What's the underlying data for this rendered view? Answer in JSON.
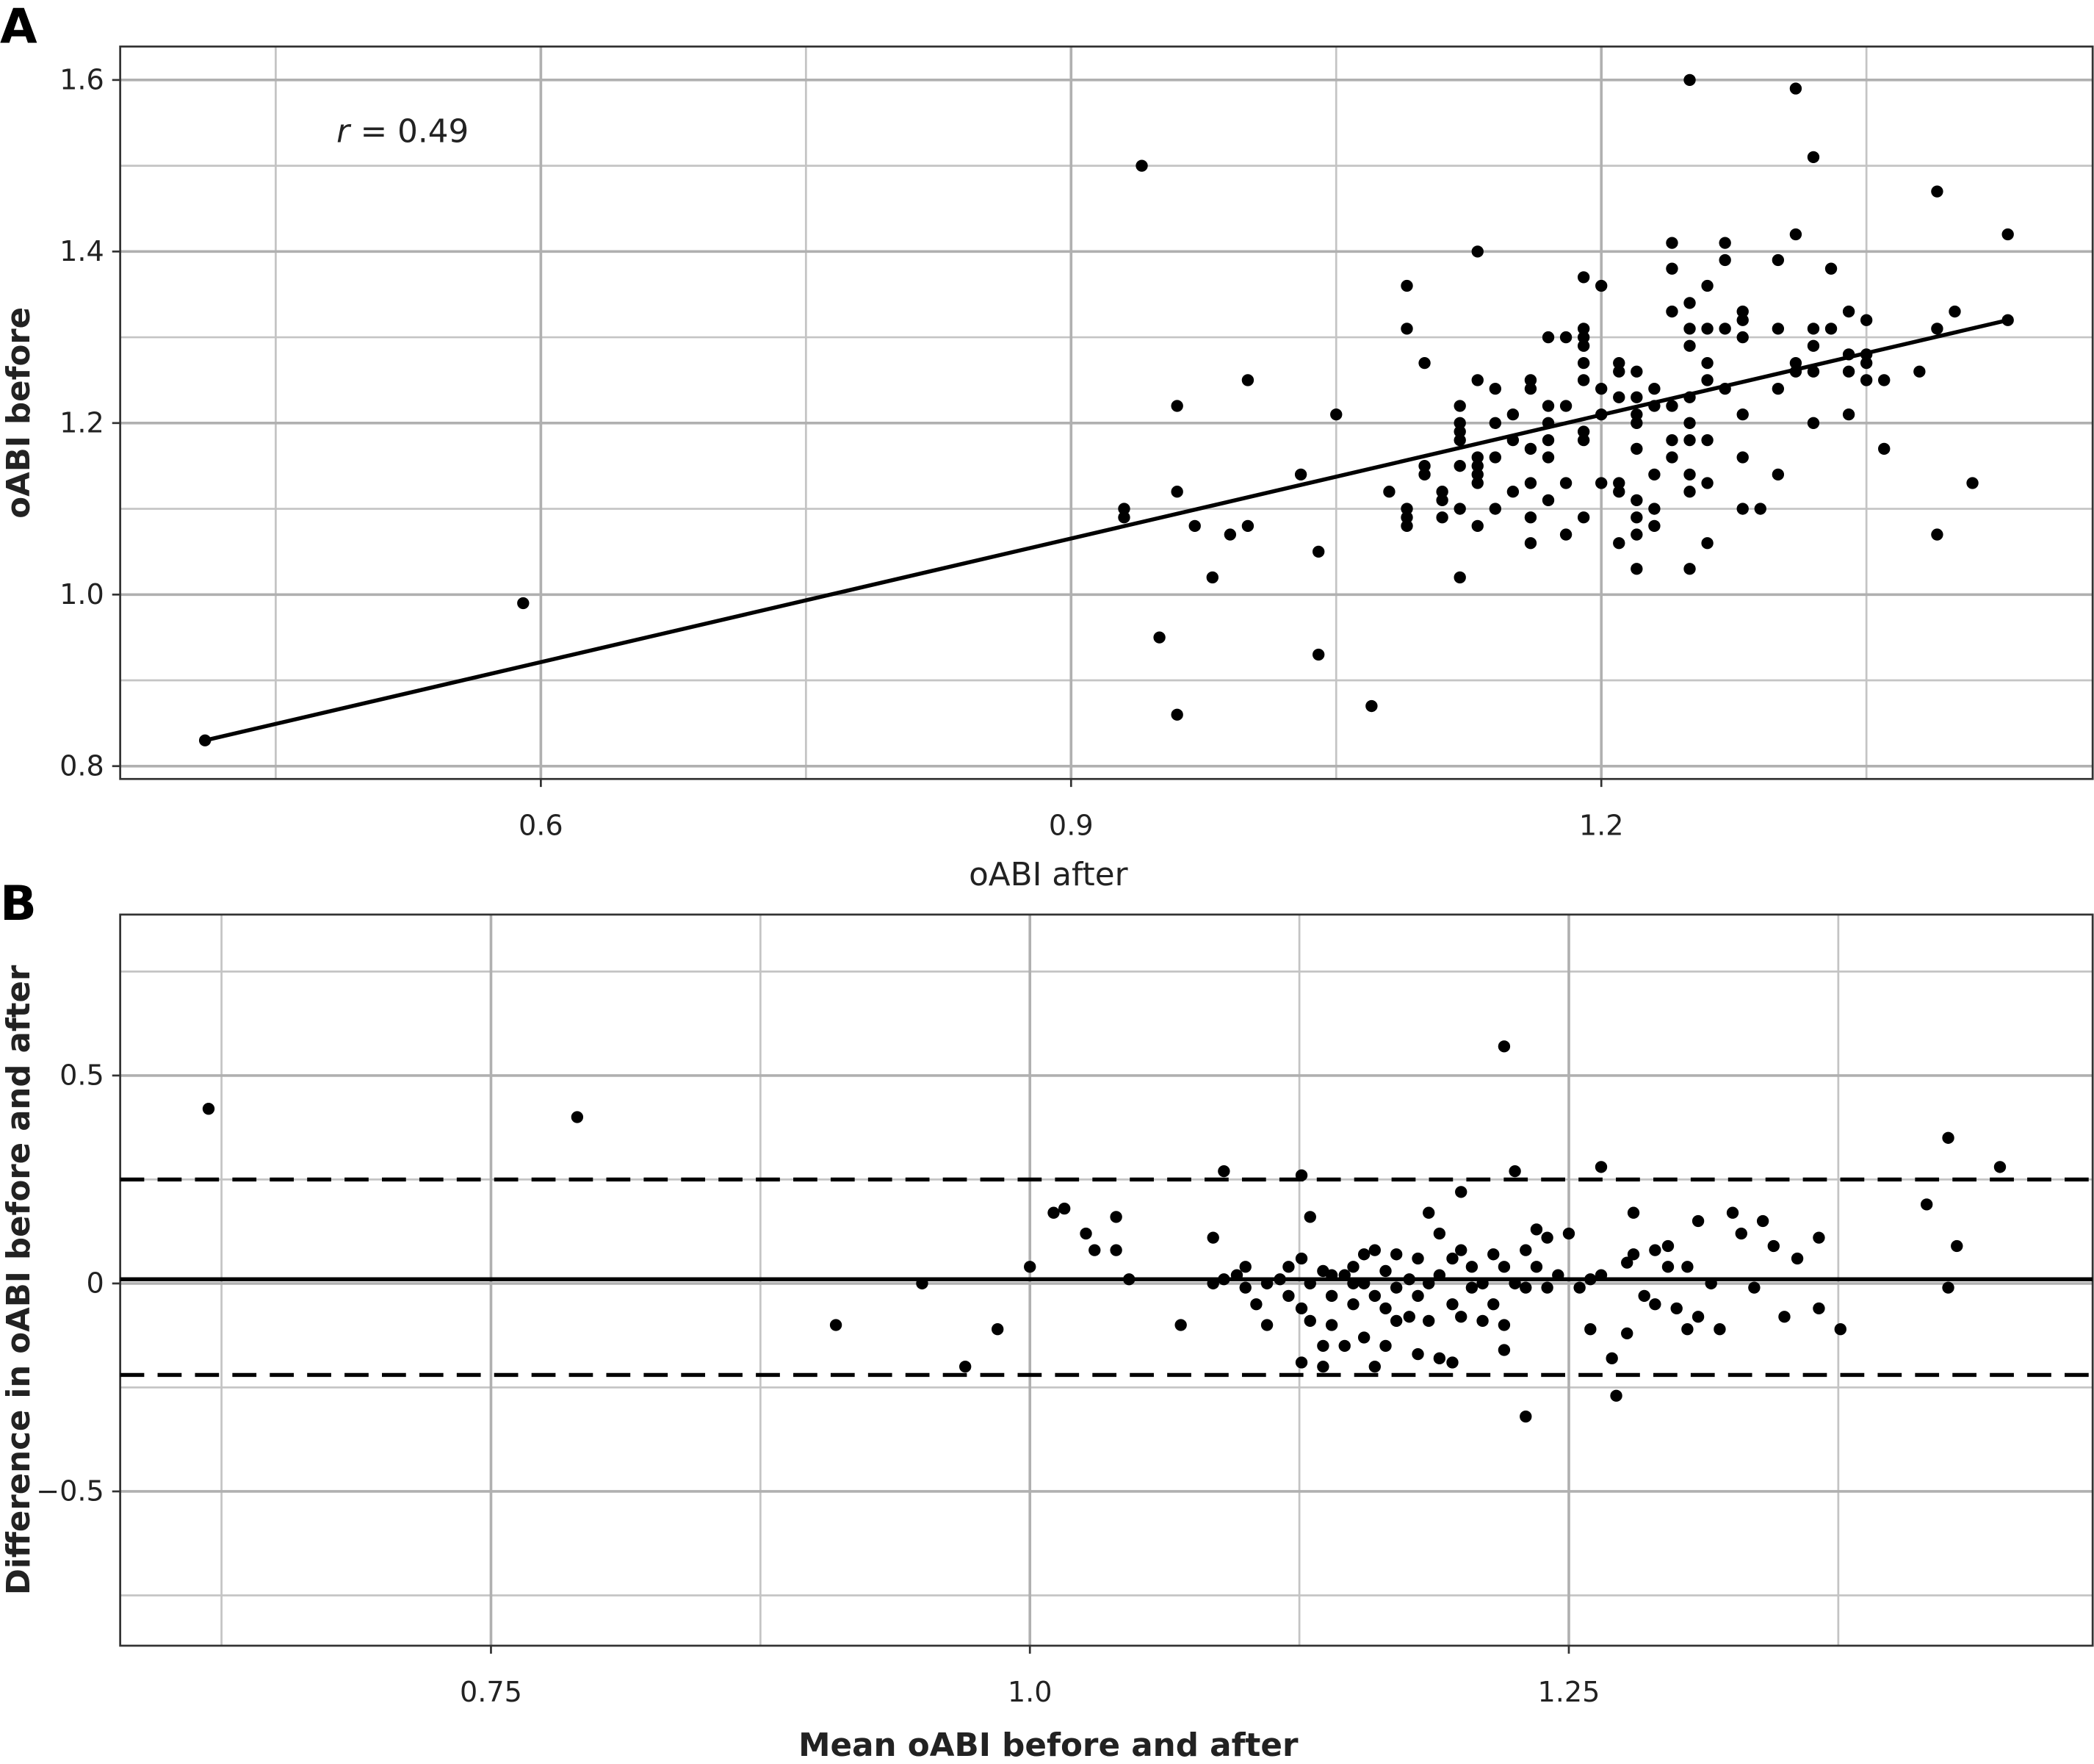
{
  "chart_data": [
    {
      "type": "scatter",
      "panel_label": "A",
      "xlabel": "oABI after",
      "ylabel": "oABI before",
      "annotation": {
        "symbol": "r",
        "text": "= 0.49"
      },
      "xlim": [
        0.362,
        1.478
      ],
      "ylim": [
        0.785,
        1.639
      ],
      "xticks": [
        0.6,
        0.9,
        1.2
      ],
      "yticks": [
        0.8,
        {
          "value": 1.0,
          "label": "1.0"
        },
        1.2,
        1.4,
        1.6
      ],
      "x_minor_grid": [
        0.45,
        0.75,
        1.05,
        1.35
      ],
      "y_minor_grid": [
        0.9,
        1.1,
        1.3,
        1.5
      ],
      "grid": true,
      "color": "#000000",
      "fit_line": {
        "x": [
          0.41,
          1.43
        ],
        "y": [
          0.83,
          1.32
        ]
      },
      "x": [
        0.41,
        0.59,
        0.94,
        0.93,
        0.93,
        0.96,
        0.96,
        0.95,
        0.96,
        0.97,
        0.98,
        0.99,
        1.0,
        1.0,
        1.03,
        1.05,
        1.04,
        1.04,
        1.07,
        1.08,
        1.09,
        1.09,
        1.09,
        1.09,
        1.09,
        1.1,
        1.1,
        1.1,
        1.11,
        1.11,
        1.11,
        1.12,
        1.12,
        1.12,
        1.12,
        1.12,
        1.12,
        1.12,
        1.13,
        1.13,
        1.13,
        1.13,
        1.13,
        1.13,
        1.13,
        1.14,
        1.14,
        1.14,
        1.14,
        1.15,
        1.15,
        1.15,
        1.16,
        1.16,
        1.16,
        1.16,
        1.16,
        1.16,
        1.17,
        1.17,
        1.17,
        1.17,
        1.17,
        1.17,
        1.18,
        1.18,
        1.18,
        1.18,
        1.19,
        1.19,
        1.19,
        1.19,
        1.19,
        1.19,
        1.19,
        1.19,
        1.19,
        1.2,
        1.2,
        1.2,
        1.2,
        1.21,
        1.21,
        1.21,
        1.21,
        1.21,
        1.21,
        1.22,
        1.22,
        1.22,
        1.22,
        1.22,
        1.22,
        1.22,
        1.22,
        1.22,
        1.23,
        1.23,
        1.23,
        1.23,
        1.23,
        1.24,
        1.24,
        1.24,
        1.24,
        1.24,
        1.24,
        1.25,
        1.25,
        1.25,
        1.25,
        1.25,
        1.25,
        1.25,
        1.25,
        1.25,
        1.25,
        1.26,
        1.26,
        1.26,
        1.26,
        1.26,
        1.26,
        1.26,
        1.27,
        1.27,
        1.27,
        1.27,
        1.28,
        1.28,
        1.28,
        1.28,
        1.28,
        1.28,
        1.29,
        1.3,
        1.3,
        1.3,
        1.3,
        1.31,
        1.31,
        1.31,
        1.31,
        1.32,
        1.32,
        1.32,
        1.32,
        1.32,
        1.33,
        1.33,
        1.34,
        1.34,
        1.34,
        1.34,
        1.35,
        1.35,
        1.35,
        1.35,
        1.36,
        1.36,
        1.38,
        1.39,
        1.39,
        1.39,
        1.4,
        1.41,
        1.43,
        1.43
      ],
      "values": [
        0.83,
        0.99,
        1.5,
        1.1,
        1.09,
        1.22,
        1.12,
        0.95,
        0.86,
        1.08,
        1.02,
        1.07,
        1.08,
        1.25,
        1.14,
        1.21,
        1.05,
        0.93,
        0.87,
        1.12,
        1.36,
        1.31,
        1.1,
        1.09,
        1.08,
        1.27,
        1.15,
        1.14,
        1.12,
        1.11,
        1.09,
        1.22,
        1.2,
        1.19,
        1.18,
        1.15,
        1.1,
        1.02,
        1.4,
        1.25,
        1.16,
        1.15,
        1.14,
        1.13,
        1.08,
        1.24,
        1.2,
        1.16,
        1.1,
        1.21,
        1.18,
        1.12,
        1.25,
        1.24,
        1.17,
        1.13,
        1.09,
        1.06,
        1.3,
        1.22,
        1.2,
        1.18,
        1.16,
        1.11,
        1.3,
        1.22,
        1.13,
        1.07,
        1.37,
        1.31,
        1.3,
        1.29,
        1.27,
        1.25,
        1.19,
        1.18,
        1.09,
        1.36,
        1.24,
        1.21,
        1.13,
        1.27,
        1.26,
        1.23,
        1.13,
        1.12,
        1.06,
        1.26,
        1.23,
        1.21,
        1.2,
        1.17,
        1.11,
        1.09,
        1.07,
        1.03,
        1.24,
        1.22,
        1.14,
        1.1,
        1.08,
        1.41,
        1.38,
        1.33,
        1.22,
        1.18,
        1.16,
        1.6,
        1.34,
        1.31,
        1.29,
        1.23,
        1.2,
        1.18,
        1.14,
        1.12,
        1.03,
        1.36,
        1.31,
        1.27,
        1.25,
        1.18,
        1.13,
        1.06,
        1.41,
        1.39,
        1.31,
        1.24,
        1.33,
        1.32,
        1.3,
        1.21,
        1.16,
        1.1,
        1.1,
        1.39,
        1.31,
        1.24,
        1.14,
        1.59,
        1.42,
        1.27,
        1.26,
        1.51,
        1.31,
        1.29,
        1.26,
        1.2,
        1.38,
        1.31,
        1.33,
        1.28,
        1.26,
        1.21,
        1.32,
        1.28,
        1.27,
        1.25,
        1.25,
        1.17,
        1.26,
        1.47,
        1.31,
        1.07,
        1.33,
        1.13,
        1.42,
        1.32
      ]
    },
    {
      "type": "scatter",
      "panel_label": "B",
      "xlabel": "Mean oABI before and after",
      "ylabel": "Difference in oABI before and after",
      "xlim": [
        0.578,
        1.493
      ],
      "ylim": [
        -0.871,
        0.887
      ],
      "xticks": [
        0.75,
        {
          "value": 1.0,
          "label": "1.0"
        },
        1.25
      ],
      "yticks": [
        {
          "value": -0.5,
          "label": "−0.5"
        },
        0,
        0.5
      ],
      "x_minor_grid": [
        0.625,
        0.875,
        1.125,
        1.375
      ],
      "y_minor_grid": [
        -0.75,
        -0.25,
        0.25,
        0.75
      ],
      "grid": true,
      "color": "#000000",
      "reference_lines": [
        {
          "y": 0.01,
          "style": "solid"
        },
        {
          "y": 0.25,
          "style": "dashed"
        },
        {
          "y": -0.22,
          "style": "dashed"
        }
      ],
      "x": [
        0.619,
        0.79,
        0.91,
        0.95,
        0.97,
        0.985,
        1.0,
        1.011,
        1.016,
        1.026,
        1.03,
        1.04,
        1.04,
        1.046,
        1.07,
        1.085,
        1.085,
        1.09,
        1.09,
        1.096,
        1.1,
        1.1,
        1.105,
        1.11,
        1.11,
        1.116,
        1.12,
        1.12,
        1.126,
        1.126,
        1.126,
        1.126,
        1.13,
        1.13,
        1.13,
        1.136,
        1.136,
        1.136,
        1.14,
        1.14,
        1.14,
        1.146,
        1.146,
        1.15,
        1.15,
        1.15,
        1.155,
        1.155,
        1.155,
        1.16,
        1.16,
        1.16,
        1.165,
        1.165,
        1.165,
        1.17,
        1.17,
        1.17,
        1.176,
        1.176,
        1.18,
        1.18,
        1.18,
        1.185,
        1.185,
        1.185,
        1.19,
        1.19,
        1.19,
        1.196,
        1.196,
        1.196,
        1.2,
        1.2,
        1.2,
        1.205,
        1.205,
        1.21,
        1.21,
        1.215,
        1.215,
        1.22,
        1.22,
        1.22,
        1.22,
        1.225,
        1.225,
        1.23,
        1.23,
        1.23,
        1.235,
        1.235,
        1.24,
        1.24,
        1.245,
        1.25,
        1.255,
        1.26,
        1.26,
        1.265,
        1.265,
        1.27,
        1.272,
        1.277,
        1.277,
        1.28,
        1.28,
        1.285,
        1.29,
        1.29,
        1.296,
        1.296,
        1.3,
        1.305,
        1.305,
        1.31,
        1.31,
        1.316,
        1.32,
        1.326,
        1.33,
        1.336,
        1.34,
        1.345,
        1.35,
        1.356,
        1.366,
        1.366,
        1.376,
        1.416,
        1.426,
        1.426,
        1.43,
        1.45
      ],
      "values": [
        0.42,
        0.4,
        -0.1,
        0.0,
        -0.2,
        -0.11,
        0.04,
        0.17,
        0.18,
        0.12,
        0.08,
        0.16,
        0.08,
        0.01,
        -0.1,
        0.11,
        0.0,
        0.27,
        0.01,
        0.02,
        0.04,
        -0.01,
        -0.05,
        0.0,
        -0.1,
        0.01,
        0.04,
        -0.03,
        0.26,
        0.06,
        -0.06,
        -0.19,
        0.16,
        0.0,
        -0.09,
        0.03,
        -0.15,
        -0.2,
        0.02,
        -0.03,
        -0.1,
        0.02,
        -0.15,
        0.04,
        0.0,
        -0.05,
        0.07,
        0.0,
        -0.13,
        0.08,
        -0.03,
        -0.2,
        0.03,
        -0.06,
        -0.15,
        0.07,
        -0.01,
        -0.09,
        0.01,
        -0.08,
        0.06,
        -0.03,
        -0.17,
        0.17,
        0.0,
        -0.09,
        0.12,
        0.02,
        -0.18,
        0.06,
        -0.05,
        -0.19,
        0.22,
        0.08,
        -0.08,
        0.04,
        -0.01,
        0.0,
        -0.09,
        0.07,
        -0.05,
        0.57,
        0.04,
        -0.1,
        -0.16,
        0.27,
        0.0,
        0.08,
        -0.01,
        -0.32,
        0.13,
        0.04,
        0.11,
        -0.01,
        0.02,
        0.12,
        -0.01,
        0.01,
        -0.11,
        0.28,
        0.02,
        -0.18,
        -0.27,
        -0.12,
        0.05,
        0.17,
        0.07,
        -0.03,
        0.08,
        -0.05,
        0.04,
        0.09,
        -0.06,
        0.04,
        -0.11,
        0.15,
        -0.08,
        0.0,
        -0.11,
        0.17,
        0.12,
        -0.01,
        0.15,
        0.09,
        -0.08,
        0.06,
        0.11,
        -0.06,
        -0.11,
        0.19,
        0.35,
        -0.01,
        0.09,
        0.28
      ]
    }
  ]
}
